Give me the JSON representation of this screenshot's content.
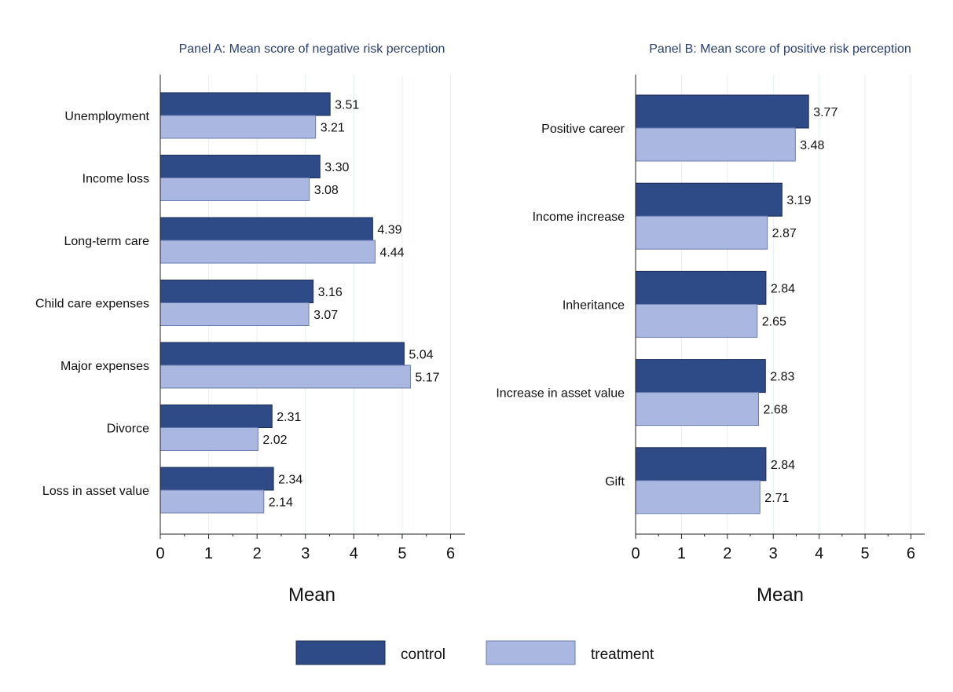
{
  "chart_data": [
    {
      "type": "bar",
      "orientation": "horizontal",
      "title": "Panel A: Mean score of negative risk perception",
      "xlabel": "Mean",
      "xlim": [
        0,
        6.3
      ],
      "ticks": [
        "0",
        "1",
        "2",
        "3",
        "4",
        "5",
        "6"
      ],
      "grid": true,
      "categories": [
        "Unemployment",
        "Income loss",
        "Long-term care",
        "Child care expenses",
        "Major expenses",
        "Divorce",
        "Loss in asset value"
      ],
      "series": [
        {
          "name": "control",
          "values": [
            3.51,
            3.3,
            4.39,
            3.16,
            5.04,
            2.31,
            2.34
          ],
          "labels": [
            "3.51",
            "3.30",
            "4.39",
            "3.16",
            "5.04",
            "2.31",
            "2.34"
          ]
        },
        {
          "name": "treatment",
          "values": [
            3.21,
            3.08,
            4.44,
            3.07,
            5.17,
            2.02,
            2.14
          ],
          "labels": [
            "3.21",
            "3.08",
            "4.44",
            "3.07",
            "5.17",
            "2.02",
            "2.14"
          ]
        }
      ]
    },
    {
      "type": "bar",
      "orientation": "horizontal",
      "title": "Panel B: Mean score of positive risk perception",
      "xlabel": "Mean",
      "xlim": [
        0,
        6.3
      ],
      "ticks": [
        "0",
        "1",
        "2",
        "3",
        "4",
        "5",
        "6"
      ],
      "grid": true,
      "categories": [
        "Positive career",
        "Income increase",
        "Inheritance",
        "Increase in asset value",
        "Gift"
      ],
      "series": [
        {
          "name": "control",
          "values": [
            3.77,
            3.19,
            2.84,
            2.83,
            2.84
          ],
          "labels": [
            "3.77",
            "3.19",
            "2.84",
            "2.83",
            "2.84"
          ]
        },
        {
          "name": "treatment",
          "values": [
            3.48,
            2.87,
            2.65,
            2.68,
            2.71
          ],
          "labels": [
            "3.48",
            "2.87",
            "2.65",
            "2.68",
            "2.71"
          ]
        }
      ]
    }
  ],
  "legend": {
    "position": "bottom-center",
    "items": [
      {
        "label": "control",
        "color": "#2e4a87"
      },
      {
        "label": "treatment",
        "color": "#aab7e0"
      }
    ]
  },
  "colors": {
    "control": "#2e4a87",
    "treatment": "#aab7e0",
    "grid": "#e4eef0",
    "title": "#2a3f6e"
  }
}
